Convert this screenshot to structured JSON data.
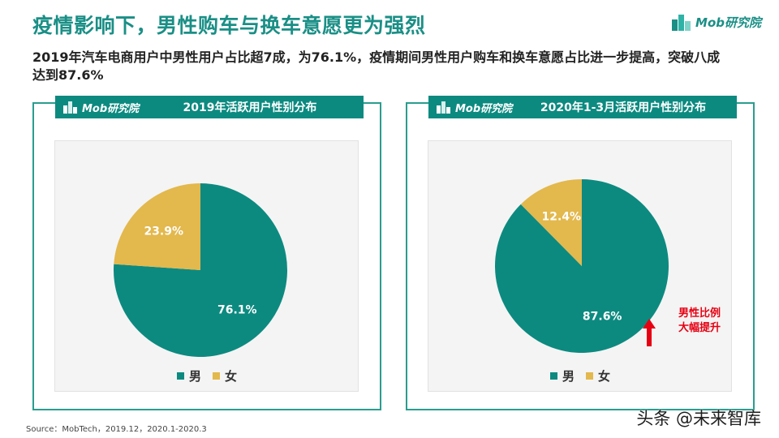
{
  "header": {
    "title": "疫情影响下，男性购车与换车意愿更为强烈",
    "subtitle": "2019年汽车电商用户中男性用户占比超7成，为76.1%，疫情期间男性用户购车和换车意愿占比进一步提高，突破八成达到87.6%",
    "brand": "Mob研究院",
    "brand_icon": "building-logo-icon"
  },
  "colors": {
    "male": "#0c8a80",
    "female": "#e3b84c",
    "accent": "#1a8f86",
    "alert": "#e60012"
  },
  "panels": [
    {
      "logo_text": "Mob研究院",
      "title": "2019年活跃用户性别分布",
      "legend": [
        "男",
        "女"
      ]
    },
    {
      "logo_text": "Mob研究院",
      "title": "2020年1-3月活跃用户性别分布",
      "legend": [
        "男",
        "女"
      ],
      "callout_line1": "男性比例",
      "callout_line2": "大幅提升",
      "callout_icon": "up-arrow-icon"
    }
  ],
  "chart_data": [
    {
      "type": "pie",
      "title": "2019年活跃用户性别分布",
      "categories": [
        "男",
        "女"
      ],
      "values": [
        76.1,
        23.9
      ],
      "labels": [
        "76.1%",
        "23.9%"
      ],
      "colors": [
        "#0c8a80",
        "#e3b84c"
      ],
      "legend": "bottom"
    },
    {
      "type": "pie",
      "title": "2020年1-3月活跃用户性别分布",
      "categories": [
        "男",
        "女"
      ],
      "values": [
        87.6,
        12.4
      ],
      "labels": [
        "87.6%",
        "12.4%"
      ],
      "colors": [
        "#0c8a80",
        "#e3b84c"
      ],
      "legend": "bottom"
    }
  ],
  "footer": {
    "source": "Source：MobTech，2019.12，2020.1-2020.3",
    "watermark": "头条 @未来智库"
  }
}
